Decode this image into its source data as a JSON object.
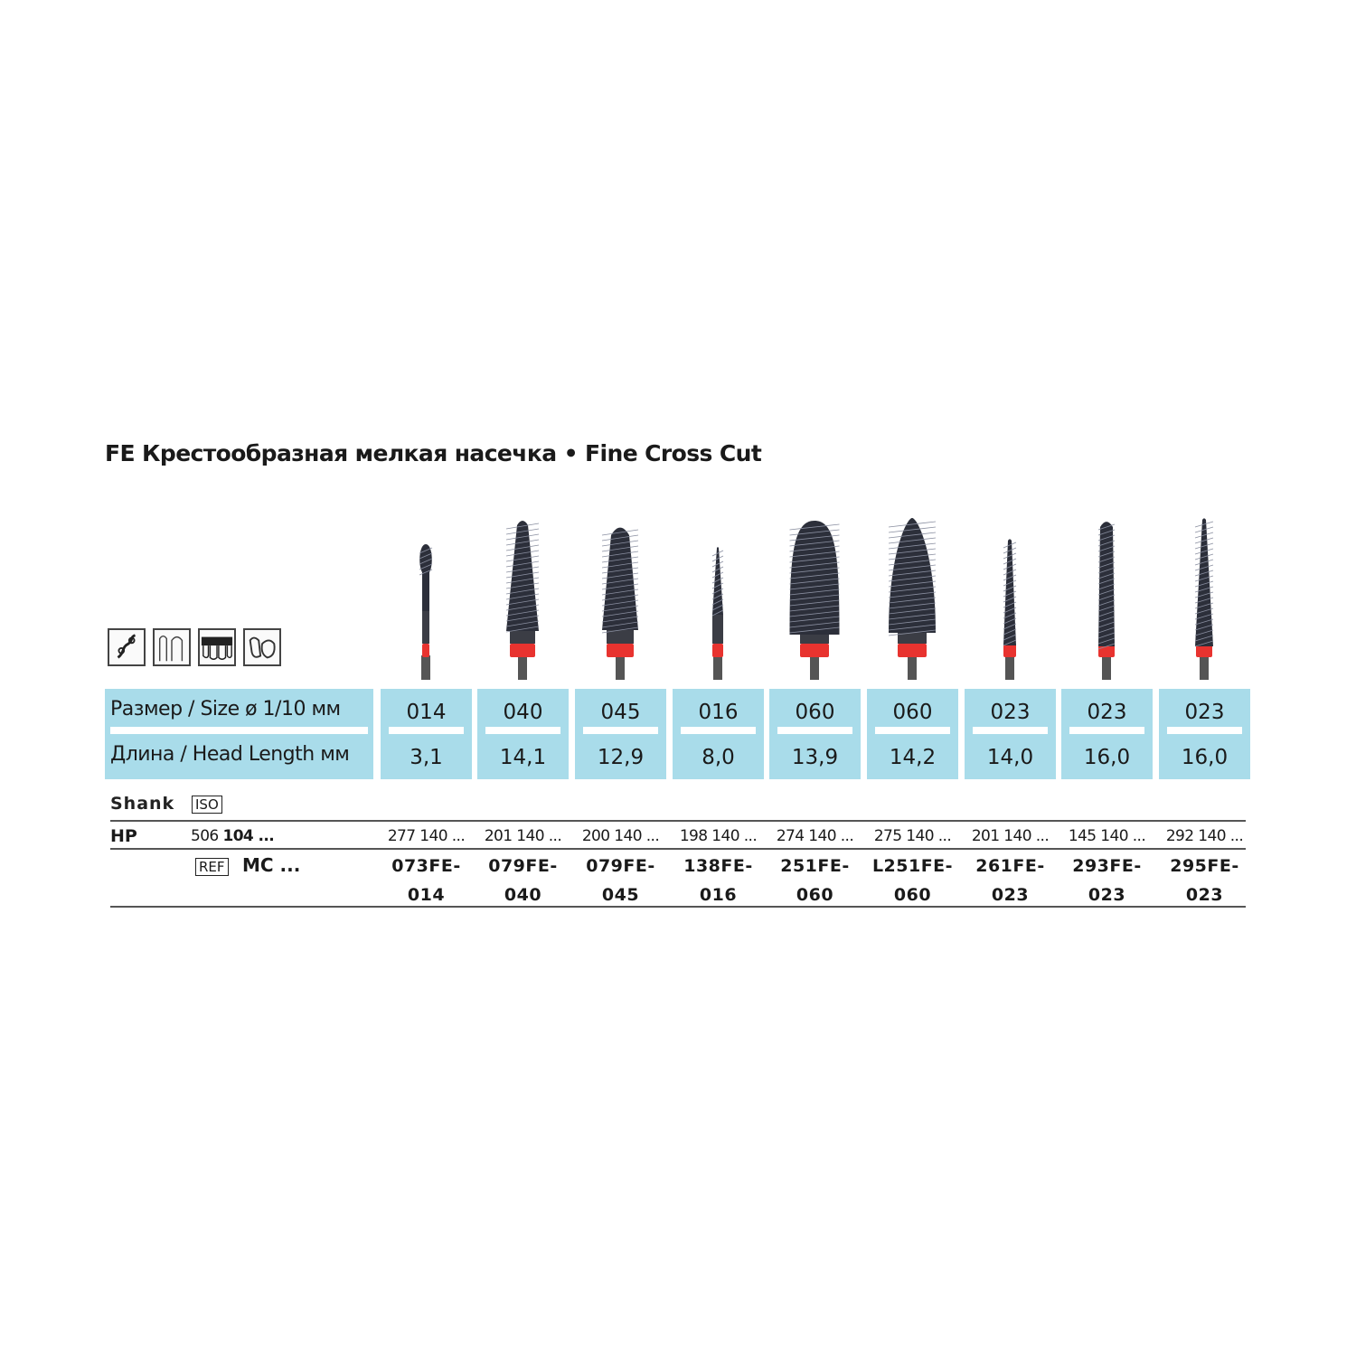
{
  "title": "FE Крестообразная мелкая насечка • Fine Cross Cut",
  "indication_icons": [
    "orthodontic-appliance-icon",
    "partial-denture-icon",
    "dentition-icon",
    "crown-model-icon"
  ],
  "colors": {
    "table_bg": "#a9dcea",
    "ring": "#e8332f",
    "bur": "#2c2f3a"
  },
  "table": {
    "size_label": "Размер / Size ø 1/10 мм",
    "length_label": "Длина / Head Length мм",
    "shank_label": "Shank",
    "shank_badge": "ISO",
    "hp_label": "HP",
    "hp_prefix": "506",
    "hp_prefix_bold": "104 ...",
    "ref_badge": "REF",
    "ref_prefix": "MC ...",
    "columns": [
      {
        "size": "014",
        "length": "3,1",
        "hp": "277 140 ...",
        "ref1": "073FE-",
        "ref2": "014"
      },
      {
        "size": "040",
        "length": "14,1",
        "hp": "201 140 ...",
        "ref1": "079FE-",
        "ref2": "040"
      },
      {
        "size": "045",
        "length": "12,9",
        "hp": "200 140 ...",
        "ref1": "079FE-",
        "ref2": "045"
      },
      {
        "size": "016",
        "length": "8,0",
        "hp": "198 140 ...",
        "ref1": "138FE-",
        "ref2": "016"
      },
      {
        "size": "060",
        "length": "13,9",
        "hp": "274 140 ...",
        "ref1": "251FE-",
        "ref2": "060"
      },
      {
        "size": "060",
        "length": "14,2",
        "hp": "275 140 ...",
        "ref1": "L251FE-",
        "ref2": "060"
      },
      {
        "size": "023",
        "length": "14,0",
        "hp": "201 140 ...",
        "ref1": "261FE-",
        "ref2": "023"
      },
      {
        "size": "023",
        "length": "16,0",
        "hp": "145 140 ...",
        "ref1": "293FE-",
        "ref2": "023"
      },
      {
        "size": "023",
        "length": "16,0",
        "hp": "292 140 ...",
        "ref1": "295FE-",
        "ref2": "023"
      }
    ]
  }
}
